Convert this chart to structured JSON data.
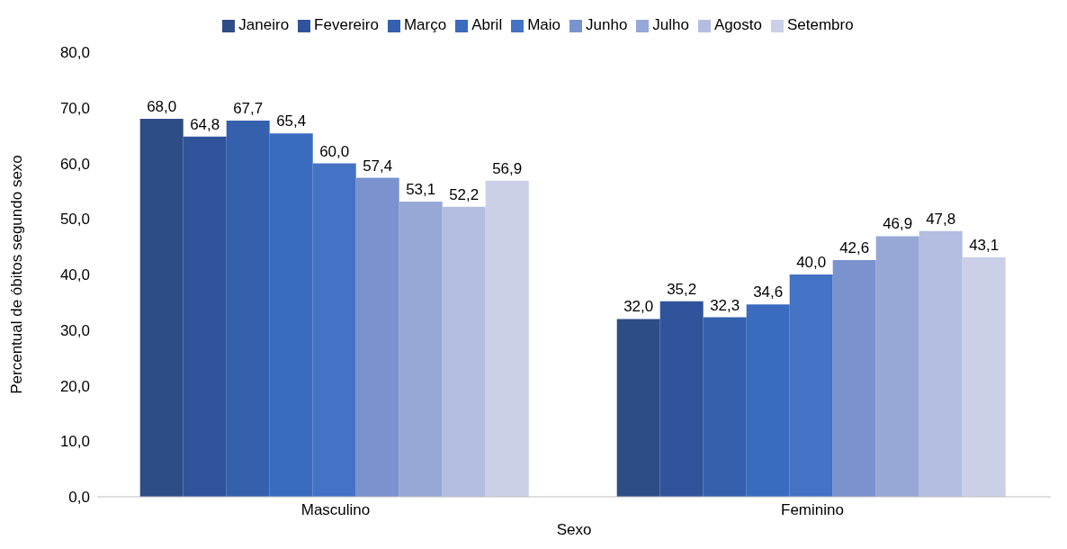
{
  "chart_data": {
    "type": "bar",
    "xlabel": "Sexo",
    "ylabel": "Percentual de óbitos segundo sexo",
    "categories": [
      "Masculino",
      "Feminino"
    ],
    "series": [
      {
        "name": "Janeiro",
        "color": "#2e4d87",
        "values": [
          68.0,
          32.0
        ],
        "value_labels": [
          "68,0",
          "32,0"
        ]
      },
      {
        "name": "Fevereiro",
        "color": "#30549b",
        "values": [
          64.8,
          35.2
        ],
        "value_labels": [
          "64,8",
          "35,2"
        ]
      },
      {
        "name": "Março",
        "color": "#3560ad",
        "values": [
          67.7,
          32.3
        ],
        "value_labels": [
          "67,7",
          "32,3"
        ]
      },
      {
        "name": "Abril",
        "color": "#3a6bbf",
        "values": [
          65.4,
          34.6
        ],
        "value_labels": [
          "65,4",
          "34,6"
        ]
      },
      {
        "name": "Maio",
        "color": "#4472c4",
        "values": [
          60.0,
          40.0
        ],
        "value_labels": [
          "60,0",
          "40,0"
        ]
      },
      {
        "name": "Junho",
        "color": "#7a93cf",
        "values": [
          57.4,
          42.6
        ],
        "value_labels": [
          "57,4",
          "42,6"
        ]
      },
      {
        "name": "Julho",
        "color": "#97a8d6",
        "values": [
          53.1,
          46.9
        ],
        "value_labels": [
          "53,1",
          "46,9"
        ]
      },
      {
        "name": "Agosto",
        "color": "#b3bde0",
        "values": [
          52.2,
          47.8
        ],
        "value_labels": [
          "52,2",
          "47,8"
        ]
      },
      {
        "name": "Setembro",
        "color": "#cbd0e8",
        "values": [
          56.9,
          43.1
        ],
        "value_labels": [
          "56,9",
          "43,1"
        ]
      }
    ],
    "ylim": [
      0,
      80
    ],
    "yticks": [
      {
        "value": 0,
        "label": "0,0"
      },
      {
        "value": 10,
        "label": "10,0"
      },
      {
        "value": 20,
        "label": "20,0"
      },
      {
        "value": 30,
        "label": "30,0"
      },
      {
        "value": 40,
        "label": "40,0"
      },
      {
        "value": 50,
        "label": "50,0"
      },
      {
        "value": 60,
        "label": "60,0"
      },
      {
        "value": 70,
        "label": "70,0"
      },
      {
        "value": 80,
        "label": "80,0"
      }
    ],
    "grid": false,
    "legend": "top"
  }
}
